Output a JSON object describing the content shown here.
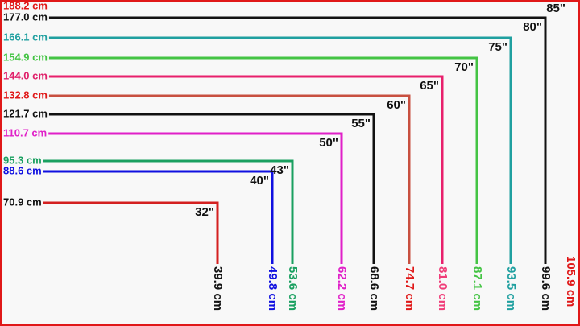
{
  "tvs": [
    {
      "size": "32\"",
      "width": "70.9 cm",
      "height": "39.9 cm",
      "line_color": "#d42020",
      "width_color": "#111111",
      "height_color": "#111111"
    },
    {
      "size": "40\"",
      "width": "88.6 cm",
      "height": "49.8 cm",
      "line_color": "#1010e0",
      "width_color": "#1010e0",
      "height_color": "#1010e0"
    },
    {
      "size": "43\"",
      "width": "95.3 cm",
      "height": "53.6 cm",
      "line_color": "#1aa060",
      "width_color": "#1aa060",
      "height_color": "#1aa060"
    },
    {
      "size": "50\"",
      "width": "110.7 cm",
      "height": "62.2 cm",
      "line_color": "#e020c8",
      "width_color": "#e020c8",
      "height_color": "#e020c8"
    },
    {
      "size": "55\"",
      "width": "121.7 cm",
      "height": "68.6 cm",
      "line_color": "#111111",
      "width_color": "#111111",
      "height_color": "#111111"
    },
    {
      "size": "60\"",
      "width": "132.8 cm",
      "height": "74.7 cm",
      "line_color": "#c85040",
      "width_color": "#e01818",
      "height_color": "#e01818"
    },
    {
      "size": "65\"",
      "width": "144.0 cm",
      "height": "81.0 cm",
      "line_color": "#e8206c",
      "width_color": "#e0206a",
      "height_color": "#f03c78"
    },
    {
      "size": "70\"",
      "width": "154.9 cm",
      "height": "87.1 cm",
      "line_color": "#44c444",
      "width_color": "#44c444",
      "height_color": "#44c444"
    },
    {
      "size": "75\"",
      "width": "166.1 cm",
      "height": "93.5 cm",
      "line_color": "#20a0a0",
      "width_color": "#20a0a0",
      "height_color": "#20a0a0"
    },
    {
      "size": "80\"",
      "width": "177.0 cm",
      "height": "99.6 cm",
      "line_color": "#111111",
      "width_color": "#111111",
      "height_color": "#111111"
    },
    {
      "size": "85\"",
      "width": "188.2 cm",
      "height": "105.9 cm",
      "line_color": "#e01818",
      "width_color": "#e01818",
      "height_color": "#e01818"
    }
  ]
}
